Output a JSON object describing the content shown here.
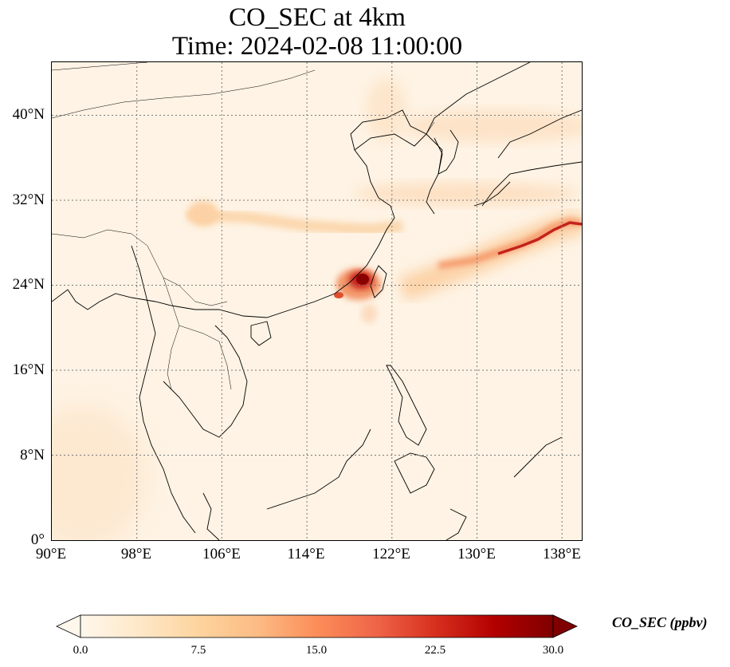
{
  "title": {
    "line1": "CO_SEC at 4km",
    "line2": "Time: 2024-02-08 11:00:00"
  },
  "map": {
    "projection": "PlateCarree",
    "lon_range": [
      90,
      140
    ],
    "lat_range": [
      0,
      45
    ],
    "lon_ticks": [
      "90°E",
      "98°E",
      "106°E",
      "114°E",
      "122°E",
      "130°E",
      "138°E"
    ],
    "lat_ticks": [
      "0°",
      "8°N",
      "16°N",
      "24°N",
      "32°N",
      "40°N"
    ],
    "gridlines": "dotted gray"
  },
  "colorbar": {
    "label": "CO_SEC (ppbv)",
    "colormap": "OrRd",
    "extend": "both",
    "ticks": [
      "0.0",
      "7.5",
      "15.0",
      "22.5",
      "30.0"
    ],
    "vmin": 0,
    "vmax": 30,
    "colors": [
      "#fff7ec",
      "#fee8c8",
      "#fdd49e",
      "#fdbb84",
      "#fc8d59",
      "#ef6548",
      "#d7301f",
      "#b30000",
      "#7f0000"
    ]
  }
}
